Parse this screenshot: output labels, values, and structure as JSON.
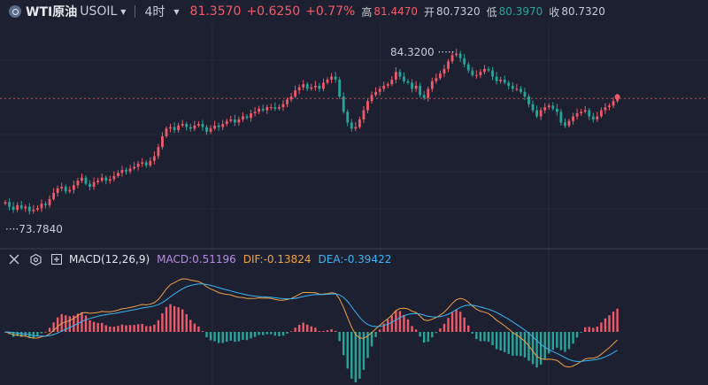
{
  "header": {
    "symbol_name": "WTI原油",
    "symbol_code": "USOIL",
    "period": "4时",
    "last_price": "81.3570",
    "change": "+0.6250",
    "change_pct": "+0.77%",
    "high_label": "高",
    "high": "81.4470",
    "open_label": "开",
    "open": "80.7320",
    "low_label": "低",
    "low": "80.3970",
    "close_label": "收",
    "close": "80.7320"
  },
  "price_pane": {
    "max_label": "84.3200",
    "min_label": "73.7840"
  },
  "macd_pane": {
    "title": "MACD(12,26,9)",
    "macd_text": "MACD:0.51196",
    "dif_text": "DIF:-0.13824",
    "dea_text": "DEA:-0.39422"
  },
  "colors": {
    "background": "#1c2030",
    "up": "#ef5a6a",
    "down": "#26a69a",
    "dif": "#f0a146",
    "dea": "#3ab4f2",
    "macd": "#b88ce6"
  },
  "icons": [
    "collapse-icon",
    "settings-icon",
    "add-indicator-icon"
  ],
  "chart_data": {
    "type": "candlestick",
    "price_range": [
      73.0,
      86.3
    ],
    "close_series": [
      74.6,
      74.3,
      74.1,
      74.4,
      74.2,
      74.3,
      74.0,
      74.1,
      74.2,
      74.5,
      74.4,
      74.8,
      75.2,
      75.5,
      75.6,
      75.3,
      75.4,
      75.7,
      76.0,
      76.2,
      75.8,
      75.6,
      75.9,
      76.0,
      76.2,
      76.0,
      76.1,
      76.3,
      76.5,
      76.7,
      76.6,
      76.8,
      76.9,
      77.1,
      77.2,
      77.0,
      77.3,
      77.6,
      78.2,
      78.9,
      79.4,
      79.5,
      79.3,
      79.6,
      79.7,
      79.5,
      79.4,
      79.6,
      79.7,
      79.5,
      79.2,
      79.4,
      79.6,
      79.5,
      79.7,
      79.9,
      80.0,
      79.8,
      80.0,
      80.2,
      80.1,
      80.4,
      80.5,
      80.7,
      80.6,
      80.8,
      80.8,
      80.7,
      80.8,
      81.0,
      81.3,
      81.5,
      81.9,
      82.1,
      82.3,
      82.0,
      82.1,
      82.2,
      82.0,
      82.4,
      82.6,
      82.8,
      82.6,
      81.5,
      80.5,
      79.8,
      79.4,
      79.5,
      80.0,
      80.6,
      81.2,
      81.6,
      81.8,
      82.0,
      82.2,
      82.3,
      82.6,
      83.1,
      82.8,
      82.5,
      82.4,
      82.0,
      82.2,
      81.6,
      81.4,
      82.0,
      82.5,
      82.7,
      83.0,
      83.3,
      83.8,
      84.2,
      84.3,
      84.0,
      83.6,
      83.2,
      82.9,
      82.9,
      83.1,
      83.3,
      83.2,
      82.8,
      82.5,
      82.6,
      82.4,
      82.2,
      82.0,
      82.0,
      81.8,
      81.5,
      81.0,
      80.6,
      80.2,
      80.6,
      80.8,
      80.9,
      80.7,
      80.5,
      79.8,
      79.6,
      79.9,
      80.2,
      80.4,
      80.5,
      80.6,
      80.2,
      80.0,
      80.2,
      80.6,
      80.8,
      80.9,
      81.2,
      81.36
    ]
  }
}
